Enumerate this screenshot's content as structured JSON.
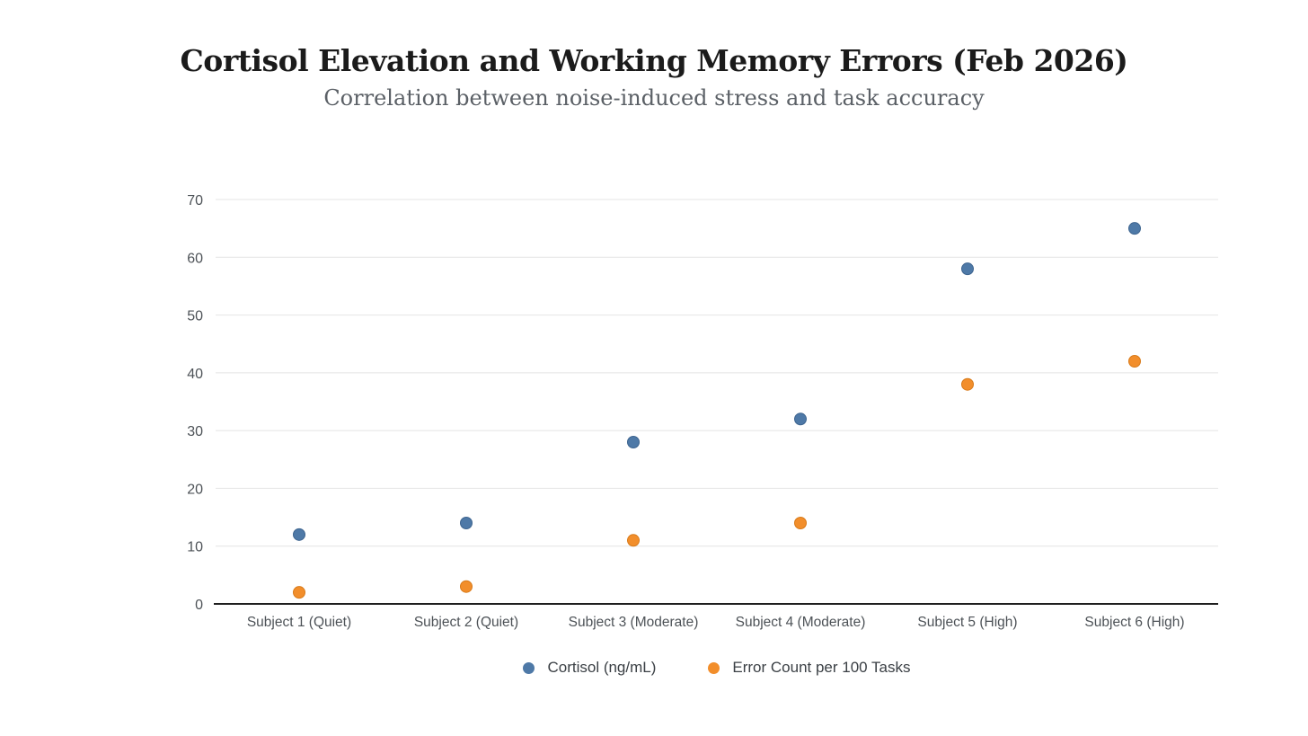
{
  "title": "Cortisol Elevation and Working Memory Errors (Feb 2026)",
  "subtitle": "Correlation between noise-induced stress and task accuracy",
  "chart_data": {
    "type": "scatter",
    "categories": [
      "Subject 1 (Quiet)",
      "Subject 2 (Quiet)",
      "Subject 3 (Moderate)",
      "Subject 4 (Moderate)",
      "Subject 5 (High)",
      "Subject 6 (High)"
    ],
    "series": [
      {
        "name": "Cortisol (ng/mL)",
        "color": "#4e79a7",
        "stroke": "#3d648f",
        "values": [
          12,
          14,
          28,
          32,
          58,
          65
        ]
      },
      {
        "name": "Error Count per 100 Tasks",
        "color": "#f28e2b",
        "stroke": "#d87a19",
        "values": [
          2,
          3,
          11,
          14,
          38,
          42
        ]
      }
    ],
    "ylim": [
      0,
      70
    ],
    "ytick_step": 10,
    "yticks": [
      0,
      10,
      20,
      30,
      40,
      50,
      60,
      70
    ],
    "grid": true,
    "legend_position": "bottom",
    "colors": {
      "grid": "#e4e4e4",
      "axis": "#1f1f1f",
      "tick_label": "#4d5257",
      "title": "#1b1b1b",
      "subtitle": "#5b6066",
      "legend_text": "#3b4045"
    }
  }
}
